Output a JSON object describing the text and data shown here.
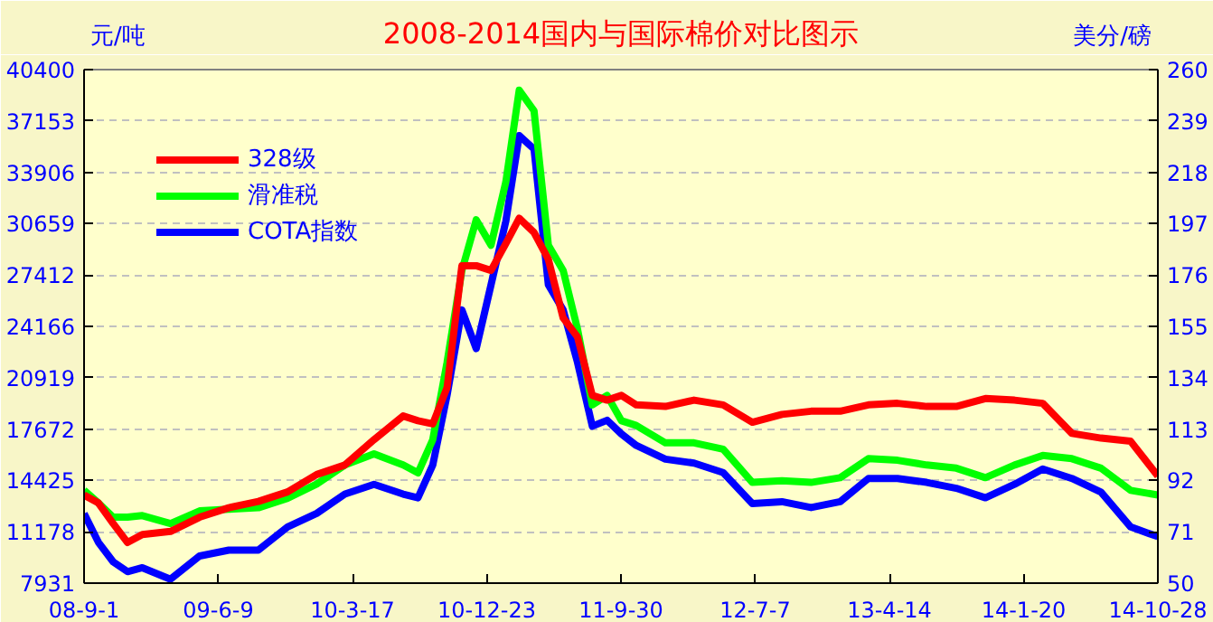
{
  "chart_data": {
    "type": "line",
    "title": "2008-2014国内与国际棉价对比图示",
    "ylabel": "元/吨",
    "y2label": "美分/磅",
    "x": [
      "2008-09-01",
      "2008-10-01",
      "2008-11-01",
      "2008-12-01",
      "2009-01-01",
      "2009-03-01",
      "2009-05-01",
      "2009-07-01",
      "2009-09-01",
      "2009-11-01",
      "2010-01-01",
      "2010-03-01",
      "2010-05-01",
      "2010-07-01",
      "2010-08-01",
      "2010-09-01",
      "2010-10-01",
      "2010-11-01",
      "2010-12-01",
      "2011-01-01",
      "2011-02-01",
      "2011-03-01",
      "2011-04-01",
      "2011-05-01",
      "2011-06-01",
      "2011-07-01",
      "2011-08-01",
      "2011-09-01",
      "2011-10-01",
      "2011-11-01",
      "2012-01-01",
      "2012-03-01",
      "2012-05-01",
      "2012-07-01",
      "2012-09-01",
      "2012-11-01",
      "2013-01-01",
      "2013-03-01",
      "2013-05-01",
      "2013-07-01",
      "2013-09-01",
      "2013-11-01",
      "2014-01-01",
      "2014-03-01",
      "2014-05-01",
      "2014-07-01",
      "2014-09-01",
      "2014-10-28"
    ],
    "series": [
      {
        "name": "328级",
        "color": "#ff0000",
        "values": [
          13500,
          13000,
          11700,
          10500,
          11000,
          11200,
          12100,
          12700,
          13100,
          13700,
          14800,
          15400,
          17000,
          18500,
          18200,
          18000,
          20300,
          28000,
          28000,
          27700,
          29400,
          31000,
          30100,
          28400,
          24700,
          23500,
          19800,
          19500,
          19800,
          19200,
          19100,
          19500,
          19200,
          18100,
          18600,
          18800,
          18800,
          19200,
          19300,
          19100,
          19100,
          19600,
          19500,
          19300,
          17400,
          17100,
          16900,
          14700
        ]
      },
      {
        "name": "滑准税",
        "color": "#00ff00",
        "values": [
          13800,
          13000,
          12100,
          12100,
          12200,
          11700,
          12500,
          12600,
          12700,
          13300,
          14200,
          15400,
          16100,
          15400,
          14900,
          17000,
          21900,
          27700,
          30900,
          29300,
          33300,
          39100,
          37800,
          29300,
          27700,
          24000,
          19200,
          19800,
          18200,
          17900,
          16800,
          16800,
          16400,
          14300,
          14400,
          14300,
          14600,
          15800,
          15700,
          15400,
          15200,
          14600,
          15400,
          16000,
          15800,
          15200,
          13800,
          13500
        ]
      },
      {
        "name": "COTA指数",
        "color": "#0000ff",
        "axis": "y2",
        "values": [
          78.5,
          66.7,
          58.7,
          54.7,
          56.3,
          51.6,
          61.1,
          63.5,
          63.5,
          73,
          78.5,
          86.4,
          90.4,
          86.4,
          84.9,
          98.3,
          126.9,
          161.7,
          145.9,
          172,
          198,
          233,
          227.5,
          172,
          161.7,
          140.3,
          114.2,
          116.6,
          111,
          106.3,
          100.7,
          99.1,
          95.2,
          82.5,
          83.3,
          80.9,
          83.3,
          92.8,
          92.8,
          91.2,
          88.8,
          84.9,
          90.4,
          96.7,
          92.8,
          87.2,
          73,
          69
        ]
      }
    ],
    "xlim": [
      "2008-09-01",
      "2014-10-28"
    ],
    "xticks": [
      {
        "value": "2008-09-01",
        "label": "08-9-1"
      },
      {
        "value": "2009-06-09",
        "label": "09-6-9"
      },
      {
        "value": "2010-03-17",
        "label": "10-3-17"
      },
      {
        "value": "2010-12-23",
        "label": "10-12-23"
      },
      {
        "value": "2011-09-30",
        "label": "11-9-30"
      },
      {
        "value": "2012-07-07",
        "label": "12-7-7"
      },
      {
        "value": "2013-04-14",
        "label": "13-4-14"
      },
      {
        "value": "2014-01-20",
        "label": "14-1-20"
      },
      {
        "value": "2014-10-28",
        "label": "14-10-28"
      }
    ],
    "ylim": [
      7931,
      40400
    ],
    "yticks": [
      7931,
      11178,
      14425,
      17672,
      20919,
      24166,
      27412,
      30659,
      33906,
      37153,
      40400
    ],
    "y2lim": [
      50,
      260
    ],
    "y2ticks": [
      50,
      71,
      92,
      113,
      134,
      155,
      176,
      197,
      218,
      239,
      260
    ],
    "grid": "y",
    "legend": "top left",
    "marker": "none",
    "line_style": "solid"
  }
}
